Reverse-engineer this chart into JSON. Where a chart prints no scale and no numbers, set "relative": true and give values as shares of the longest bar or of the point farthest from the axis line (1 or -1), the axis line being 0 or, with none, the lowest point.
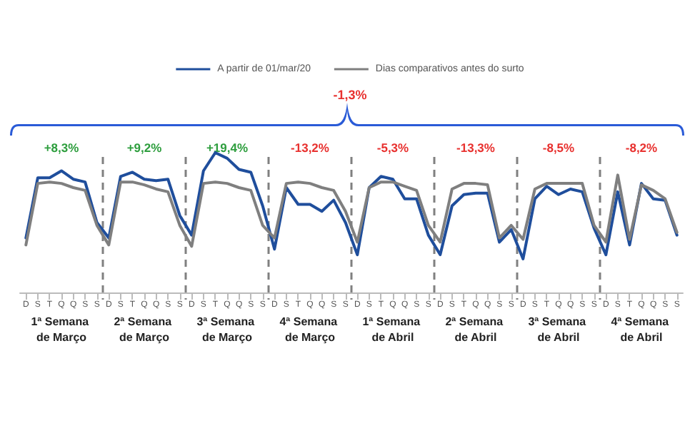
{
  "chart_data": {
    "type": "line",
    "relative": true,
    "legend": "top",
    "grid": false,
    "marker": "none",
    "line_style": "solid",
    "categories": [
      "D",
      "S",
      "T",
      "Q",
      "Q",
      "S",
      "S",
      "D",
      "S",
      "T",
      "Q",
      "Q",
      "S",
      "S",
      "D",
      "S",
      "T",
      "Q",
      "Q",
      "S",
      "S",
      "D",
      "S",
      "T",
      "Q",
      "Q",
      "S",
      "S",
      "D",
      "S",
      "T",
      "Q",
      "Q",
      "S",
      "S",
      "D",
      "S",
      "T",
      "Q",
      "Q",
      "S",
      "S",
      "D",
      "S",
      "T",
      "Q",
      "Q",
      "S",
      "S",
      "D",
      "S",
      "T",
      "Q",
      "Q",
      "S",
      "S"
    ],
    "series": [
      {
        "name": "A partir de 01/mar/20",
        "color": "#1f4e9c",
        "values": [
          0.39,
          0.82,
          0.82,
          0.87,
          0.81,
          0.79,
          0.5,
          0.39,
          0.83,
          0.86,
          0.81,
          0.8,
          0.81,
          0.55,
          0.41,
          0.87,
          1.0,
          0.96,
          0.88,
          0.86,
          0.62,
          0.31,
          0.75,
          0.63,
          0.63,
          0.58,
          0.66,
          0.5,
          0.27,
          0.75,
          0.83,
          0.81,
          0.67,
          0.67,
          0.41,
          0.27,
          0.62,
          0.7,
          0.71,
          0.71,
          0.36,
          0.45,
          0.24,
          0.67,
          0.76,
          0.7,
          0.74,
          0.72,
          0.46,
          0.27,
          0.72,
          0.34,
          0.78,
          0.67,
          0.66,
          0.41
        ]
      },
      {
        "name": "Dias comparativos antes do surto",
        "color": "#7f7f7f",
        "values": [
          0.34,
          0.78,
          0.79,
          0.78,
          0.75,
          0.73,
          0.48,
          0.34,
          0.79,
          0.79,
          0.77,
          0.74,
          0.72,
          0.48,
          0.33,
          0.78,
          0.79,
          0.78,
          0.75,
          0.73,
          0.48,
          0.39,
          0.78,
          0.79,
          0.78,
          0.75,
          0.73,
          0.58,
          0.36,
          0.75,
          0.79,
          0.79,
          0.76,
          0.73,
          0.48,
          0.36,
          0.74,
          0.78,
          0.78,
          0.77,
          0.39,
          0.48,
          0.38,
          0.74,
          0.78,
          0.78,
          0.78,
          0.78,
          0.48,
          0.36,
          0.84,
          0.38,
          0.77,
          0.73,
          0.67,
          0.43
        ]
      }
    ],
    "annotations": [
      "-1,3%",
      "+8,3%",
      "+9,2%",
      "+19,4%",
      "-13,2%",
      "-5,3%",
      "-13,3%",
      "-8,5%",
      "-8,2%",
      "1ª Semana de Março",
      "2ª Semana de Março",
      "3ª Semana de Março",
      "4ª Semana de Março",
      "1ª Semana de Abril",
      "2ª Semana de Abril",
      "3ª Semana de Abril",
      "4ª Semana de Abril"
    ]
  }
}
